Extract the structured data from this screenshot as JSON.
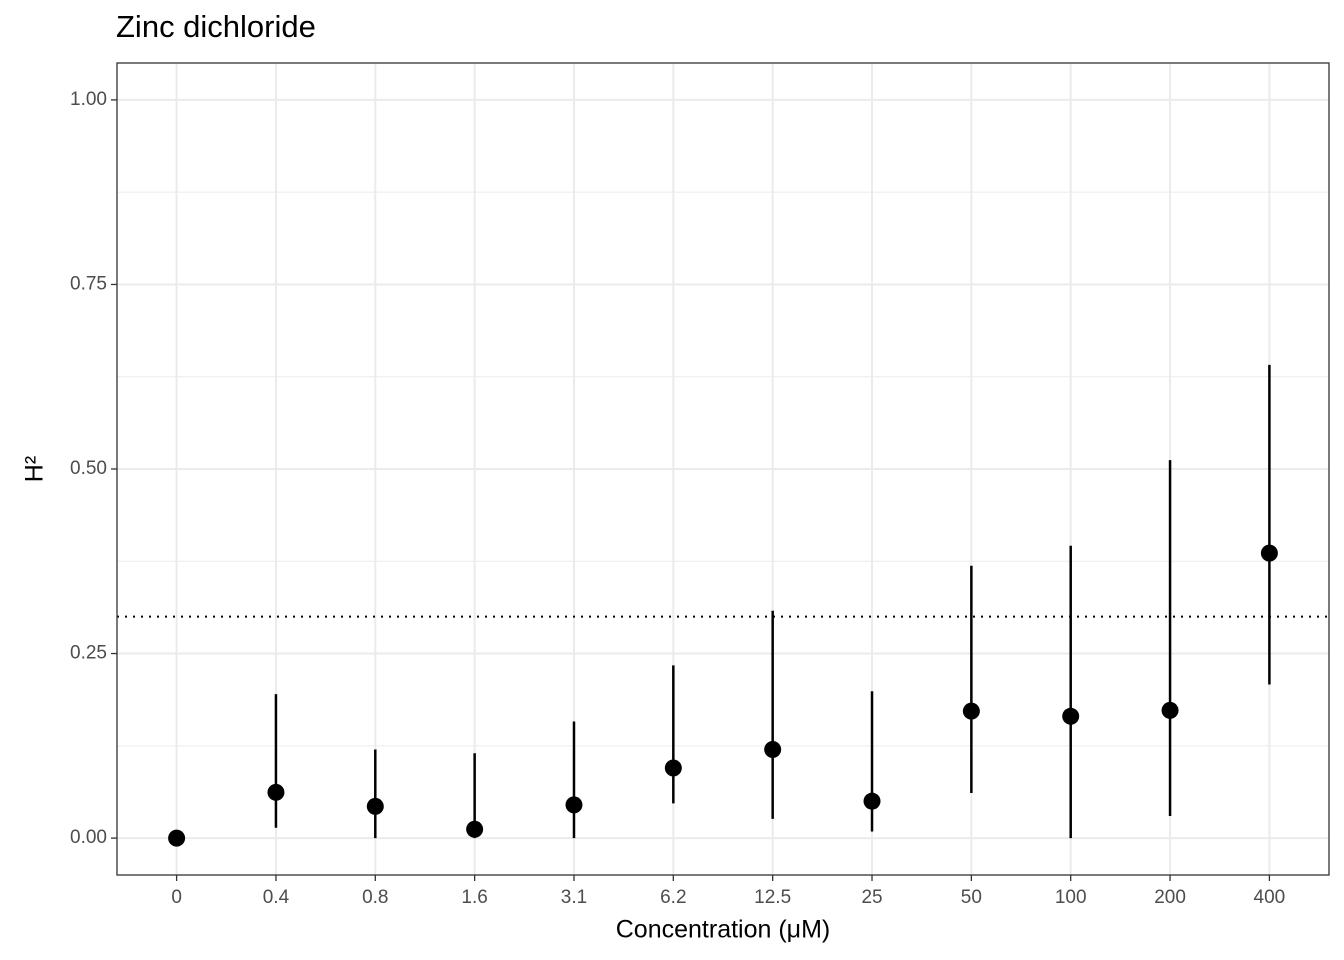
{
  "chart_data": {
    "type": "pointrange",
    "title": "Zinc dichloride",
    "x_label": "Concentration (μM)",
    "y_label": "H²",
    "categories": [
      "0",
      "0.4",
      "0.8",
      "1.6",
      "3.1",
      "6.2",
      "12.5",
      "25",
      "50",
      "100",
      "200",
      "400"
    ],
    "series": [
      {
        "color": "#000000",
        "values": [
          0,
          0.062,
          0.043,
          0.012,
          0.045,
          0.095,
          0.12,
          0.05,
          0.172,
          0.165,
          0.173,
          0.386
        ],
        "lower": [
          0,
          0.014,
          0,
          0,
          0,
          0.047,
          0.026,
          0.009,
          0.061,
          0,
          0.03,
          0.208
        ],
        "upper": [
          0,
          0.195,
          0.12,
          0.115,
          0.158,
          0.234,
          0.308,
          0.199,
          0.369,
          0.396,
          0.512,
          0.641
        ]
      }
    ],
    "hline": 0.3,
    "ylim": [
      -0.05,
      1.05
    ],
    "yticks": [
      {
        "value": 0,
        "label": "0.00"
      },
      {
        "value": 0.25,
        "label": "0.25"
      },
      {
        "value": 0.5,
        "label": "0.50"
      },
      {
        "value": 0.75,
        "label": "0.75"
      },
      {
        "value": 1,
        "label": "1.00"
      }
    ],
    "grid": true
  }
}
